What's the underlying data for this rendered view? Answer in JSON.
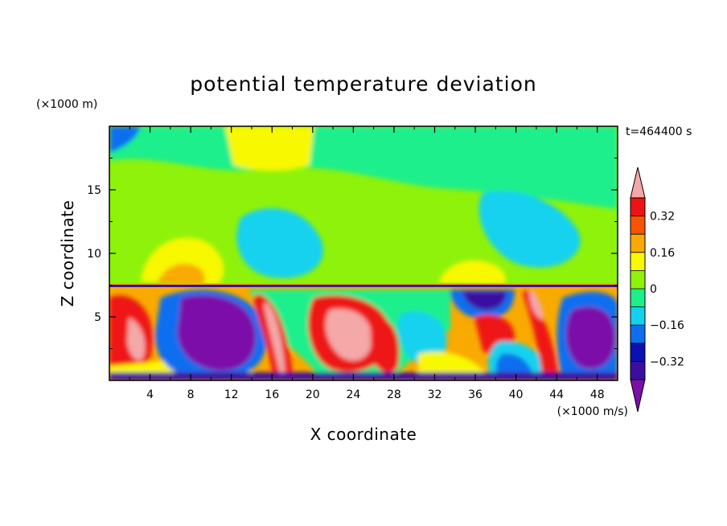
{
  "chart_data": {
    "type": "heatmap",
    "title": "potential temperature deviation",
    "xlabel": "X coordinate",
    "ylabel": "Z coordinate",
    "x_unit": "(×1000 m/s)",
    "y_unit": "(×1000 m)",
    "time_label": "t=464400 s",
    "xlim": [
      0,
      50
    ],
    "ylim": [
      0,
      20
    ],
    "x_ticks": [
      4,
      8,
      12,
      16,
      20,
      24,
      28,
      32,
      36,
      40,
      44,
      48
    ],
    "y_ticks": [
      5,
      10,
      15
    ],
    "colorbar": {
      "levels": [
        -0.4,
        -0.32,
        -0.24,
        -0.16,
        -0.08,
        0,
        0.08,
        0.16,
        0.24,
        0.32,
        0.4
      ],
      "tick_values": [
        0.32,
        0.16,
        0,
        -0.16,
        -0.32
      ],
      "tick_labels": [
        "0.32",
        "0.16",
        "0",
        "−0.16",
        "−0.32"
      ],
      "colors": [
        "#7b0fa8",
        "#3a0fa0",
        "#0a10b4",
        "#0f6ef0",
        "#12d2ee",
        "#1aef8c",
        "#8ff20a",
        "#f8f800",
        "#f8aa00",
        "#f85400",
        "#ee1212",
        "#f4a8a8"
      ]
    },
    "layers": {
      "upper_level": "mostly 0 to 0.08 with patches of 0.08–0.16 near x=10–20 and -0.08–0 near x=20–30",
      "tropopause_z": 7.5,
      "lower_level": "strong eddies ranging from below -0.40 to above 0.40"
    }
  }
}
